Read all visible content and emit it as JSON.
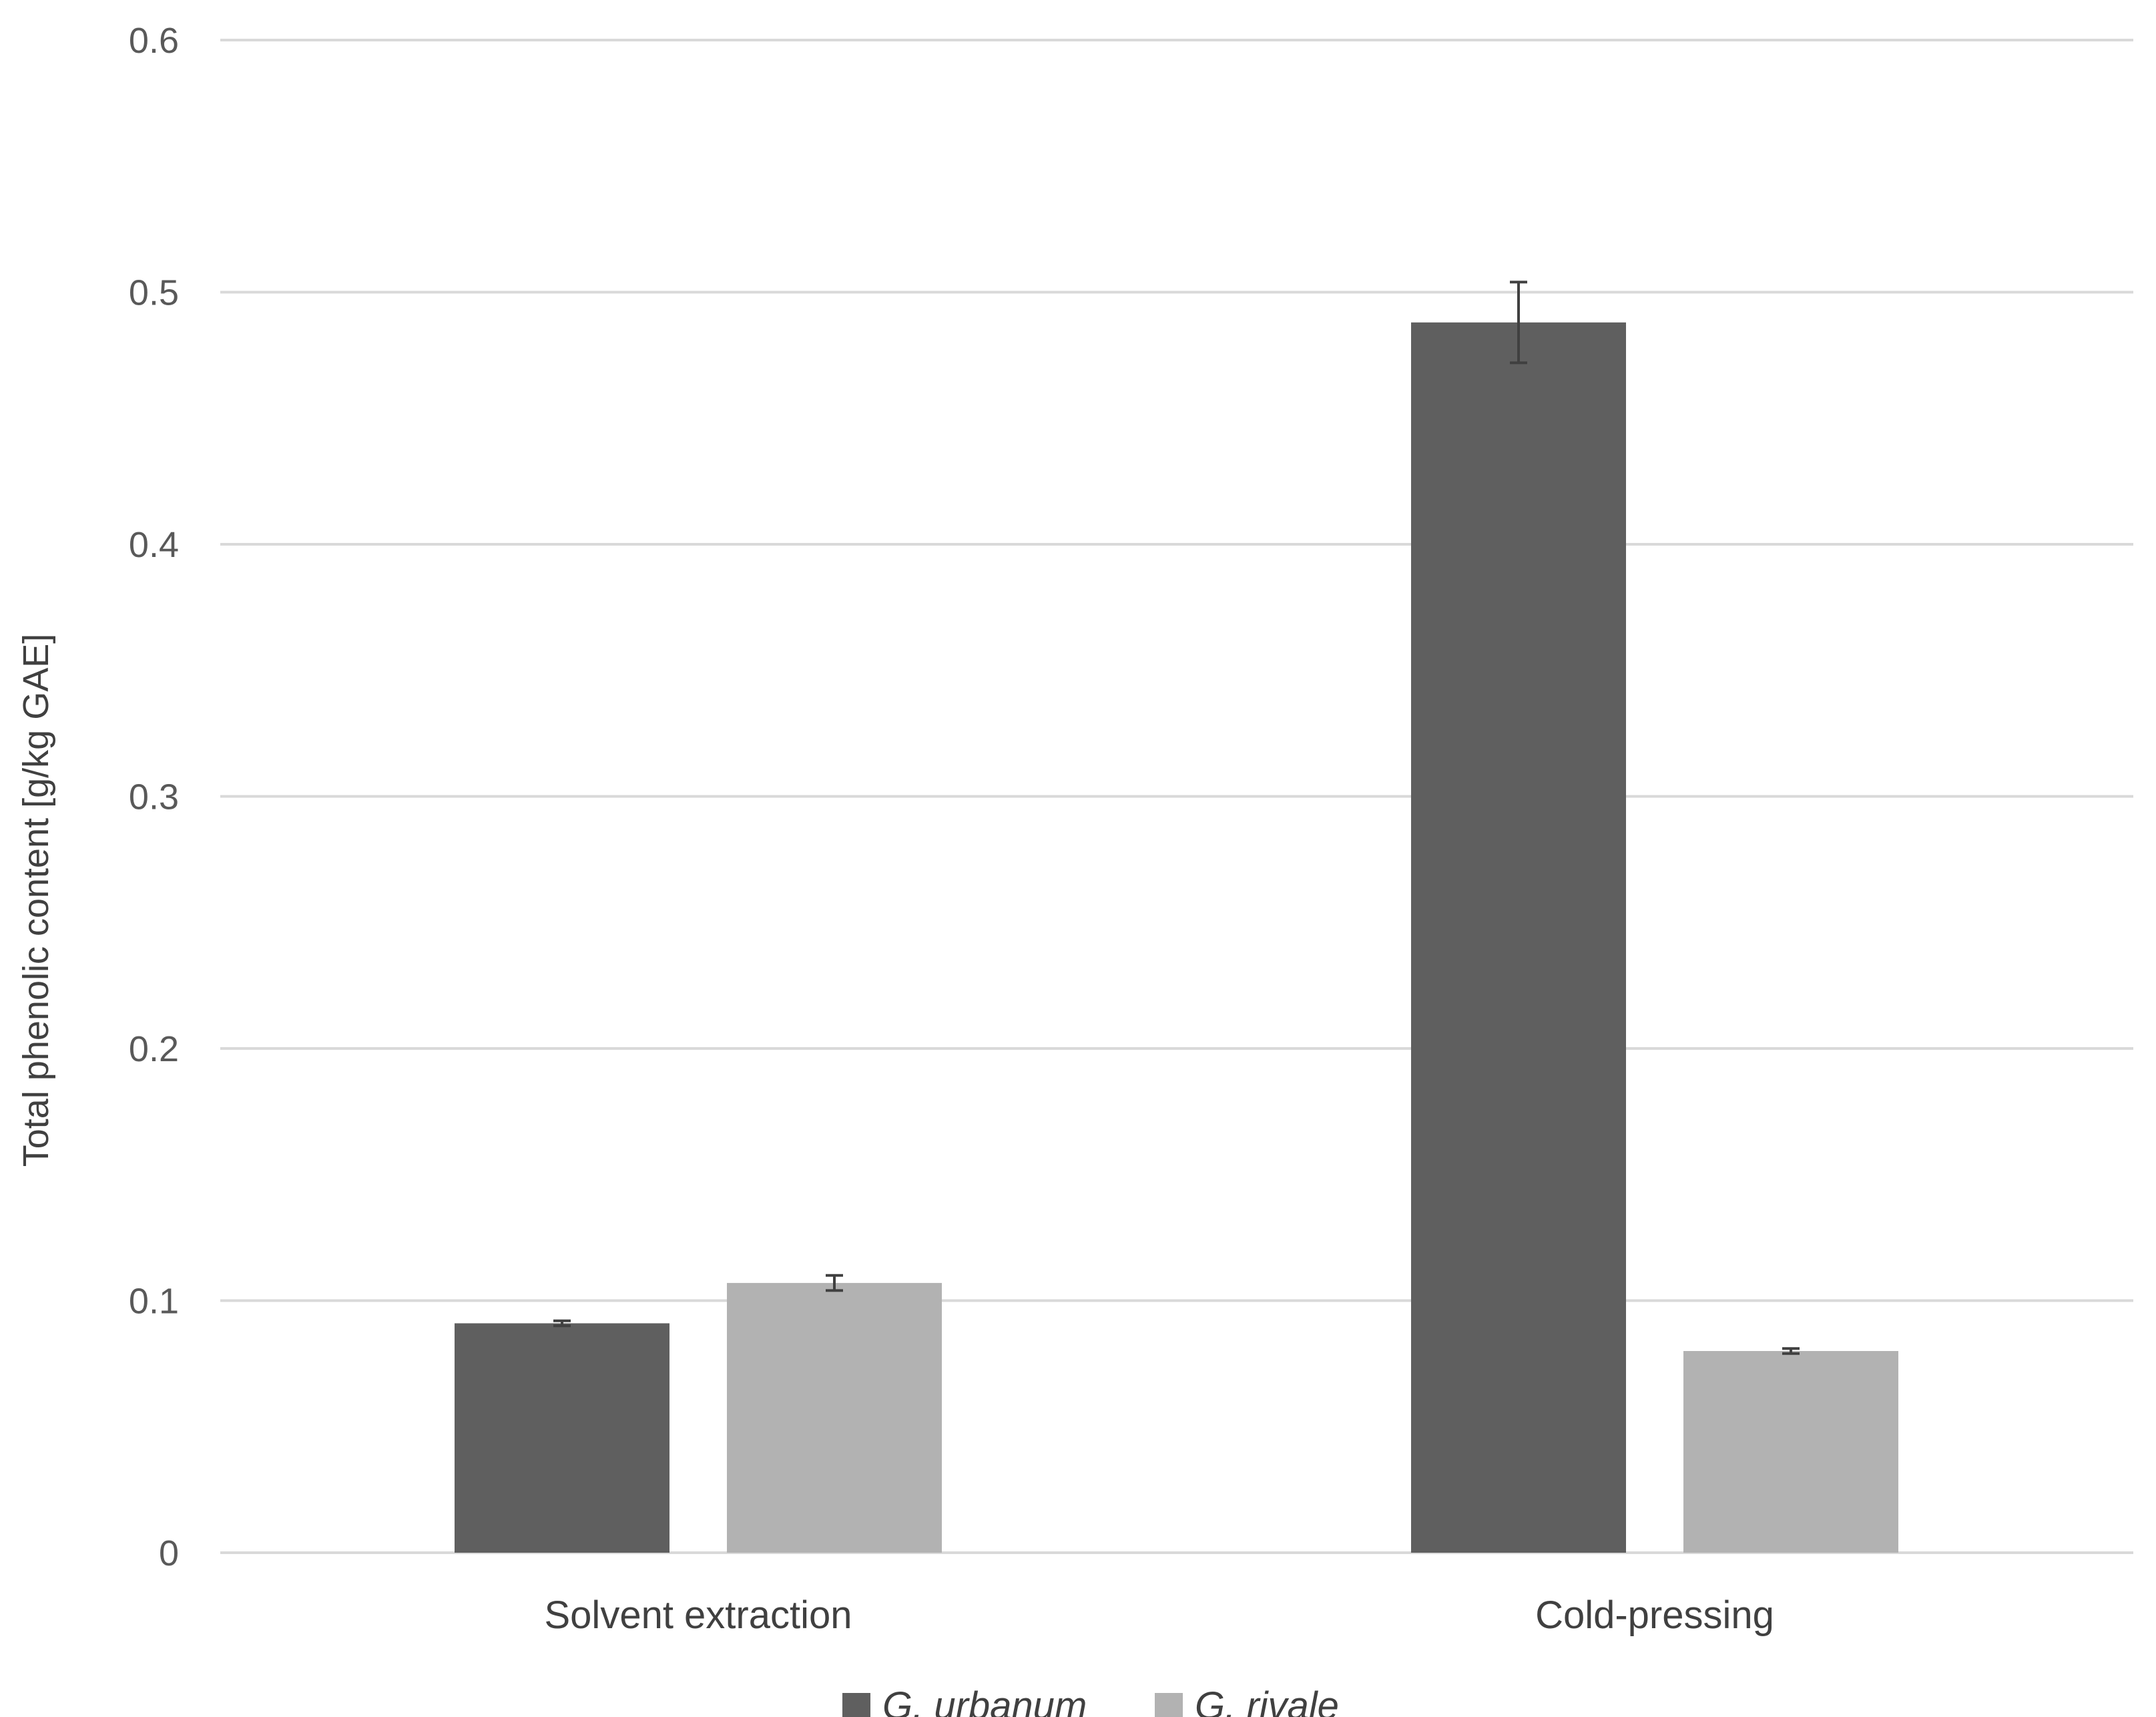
{
  "chart_data": {
    "type": "bar",
    "title": "",
    "xlabel": "",
    "ylabel": "Total phenolic content [g/kg GAE]",
    "ylim": [
      0,
      0.6
    ],
    "yticks": [
      0,
      0.1,
      0.2,
      0.3,
      0.4,
      0.5,
      0.6
    ],
    "ytick_labels": [
      "0",
      "0.1",
      "0.2",
      "0.3",
      "0.4",
      "0.5",
      "0.6"
    ],
    "grid": true,
    "legend_position": "bottom",
    "categories": [
      "Solvent extraction",
      "Cold-pressing"
    ],
    "series": [
      {
        "name": "G. urbanum",
        "color": "#5f5f5f",
        "values": [
          0.091,
          0.488
        ],
        "errors": [
          0.001,
          0.016
        ]
      },
      {
        "name": "G. rivale",
        "color": "#b2b2b2",
        "values": [
          0.107,
          0.08
        ],
        "errors": [
          0.003,
          0.001
        ]
      }
    ]
  }
}
